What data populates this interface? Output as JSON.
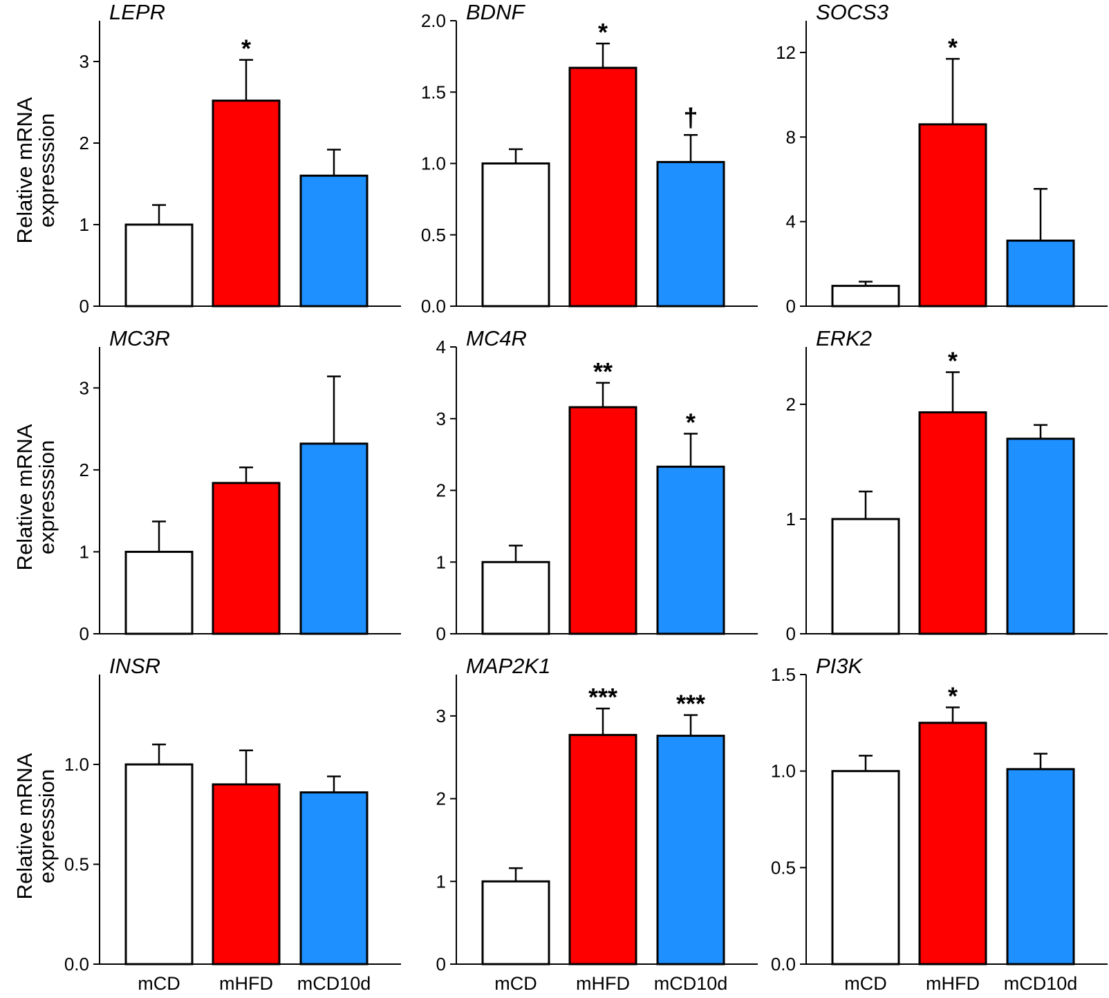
{
  "figure": {
    "colors": {
      "mCD": "#ffffff",
      "mHFD": "#ff0000",
      "mCD10d": "#1e90ff",
      "stroke": "#000000"
    },
    "ylabel_line1": "Relative mRNA",
    "ylabel_line2": "expresssion"
  },
  "chart_data": [
    {
      "type": "bar",
      "title": "LEPR",
      "categories": [
        "mCD",
        "mHFD",
        "mCD10d"
      ],
      "values": [
        1.0,
        2.52,
        1.6
      ],
      "errors": [
        0.24,
        0.5,
        0.32
      ],
      "significance": [
        "",
        "*",
        ""
      ],
      "ylim": [
        0,
        3.5
      ],
      "ticks": [
        0,
        1,
        2,
        3
      ],
      "tick_labels": [
        "0",
        "1",
        "2",
        "3"
      ],
      "ylabel": "Relative mRNA expresssion",
      "xlabel": ""
    },
    {
      "type": "bar",
      "title": "BDNF",
      "categories": [
        "mCD",
        "mHFD",
        "mCD10d"
      ],
      "values": [
        1.0,
        1.67,
        1.01
      ],
      "errors": [
        0.1,
        0.17,
        0.19
      ],
      "significance": [
        "",
        "*",
        "†"
      ],
      "ylim": [
        0,
        2.0
      ],
      "ticks": [
        0,
        0.5,
        1.0,
        1.5,
        2.0
      ],
      "tick_labels": [
        "0.0",
        "0.5",
        "1.0",
        "1.5",
        "2.0"
      ],
      "ylabel": "",
      "xlabel": ""
    },
    {
      "type": "bar",
      "title": "SOCS3",
      "categories": [
        "mCD",
        "mHFD",
        "mCD10d"
      ],
      "values": [
        0.96,
        8.6,
        3.1
      ],
      "errors": [
        0.2,
        3.1,
        2.45
      ],
      "significance": [
        "",
        "*",
        ""
      ],
      "ylim": [
        0,
        13.5
      ],
      "ticks": [
        0,
        4,
        8,
        12
      ],
      "tick_labels": [
        "0",
        "4",
        "8",
        "12"
      ],
      "ylabel": "",
      "xlabel": ""
    },
    {
      "type": "bar",
      "title": "MC3R",
      "categories": [
        "mCD",
        "mHFD",
        "mCD10d"
      ],
      "values": [
        1.0,
        1.84,
        2.32
      ],
      "errors": [
        0.37,
        0.19,
        0.82
      ],
      "significance": [
        "",
        "",
        ""
      ],
      "ylim": [
        0,
        3.5
      ],
      "ticks": [
        0,
        1,
        2,
        3
      ],
      "tick_labels": [
        "0",
        "1",
        "2",
        "3"
      ],
      "ylabel": "Relative mRNA expresssion",
      "xlabel": ""
    },
    {
      "type": "bar",
      "title": "MC4R",
      "categories": [
        "mCD",
        "mHFD",
        "mCD10d"
      ],
      "values": [
        1.0,
        3.16,
        2.33
      ],
      "errors": [
        0.23,
        0.34,
        0.46
      ],
      "significance": [
        "",
        "**",
        "*"
      ],
      "ylim": [
        0,
        4
      ],
      "ticks": [
        0,
        1,
        2,
        3,
        4
      ],
      "tick_labels": [
        "0",
        "1",
        "2",
        "3",
        "4"
      ],
      "ylabel": "",
      "xlabel": ""
    },
    {
      "type": "bar",
      "title": "ERK2",
      "categories": [
        "mCD",
        "mHFD",
        "mCD10d"
      ],
      "values": [
        1.0,
        1.93,
        1.7
      ],
      "errors": [
        0.24,
        0.35,
        0.12
      ],
      "significance": [
        "",
        "*",
        ""
      ],
      "ylim": [
        0,
        2.5
      ],
      "ticks": [
        0,
        1,
        2
      ],
      "tick_labels": [
        "0",
        "1",
        "2"
      ],
      "ylabel": "",
      "xlabel": ""
    },
    {
      "type": "bar",
      "title": "INSR",
      "categories": [
        "mCD",
        "mHFD",
        "mCD10d"
      ],
      "values": [
        1.0,
        0.9,
        0.86
      ],
      "errors": [
        0.1,
        0.17,
        0.08
      ],
      "significance": [
        "",
        "",
        ""
      ],
      "ylim": [
        0,
        1.45
      ],
      "ticks": [
        0,
        0.5,
        1.0
      ],
      "tick_labels": [
        "0.0",
        "0.5",
        "1.0"
      ],
      "ylabel": "Relative mRNA expresssion",
      "xlabel": ""
    },
    {
      "type": "bar",
      "title": "MAP2K1",
      "categories": [
        "mCD",
        "mHFD",
        "mCD10d"
      ],
      "values": [
        1.0,
        2.77,
        2.76
      ],
      "errors": [
        0.16,
        0.32,
        0.25
      ],
      "significance": [
        "",
        "***",
        "***"
      ],
      "ylim": [
        0,
        3.5
      ],
      "ticks": [
        0,
        1,
        2,
        3
      ],
      "tick_labels": [
        "0",
        "1",
        "2",
        "3"
      ],
      "ylabel": "",
      "xlabel": ""
    },
    {
      "type": "bar",
      "title": "PI3K",
      "categories": [
        "mCD",
        "mHFD",
        "mCD10d"
      ],
      "values": [
        1.0,
        1.25,
        1.01
      ],
      "errors": [
        0.08,
        0.08,
        0.08
      ],
      "significance": [
        "",
        "*",
        ""
      ],
      "ylim": [
        0,
        1.5
      ],
      "ticks": [
        0,
        0.5,
        1.0,
        1.5
      ],
      "tick_labels": [
        "0.0",
        "0.5",
        "1.0",
        "1.5"
      ],
      "ylabel": "",
      "xlabel": ""
    }
  ]
}
